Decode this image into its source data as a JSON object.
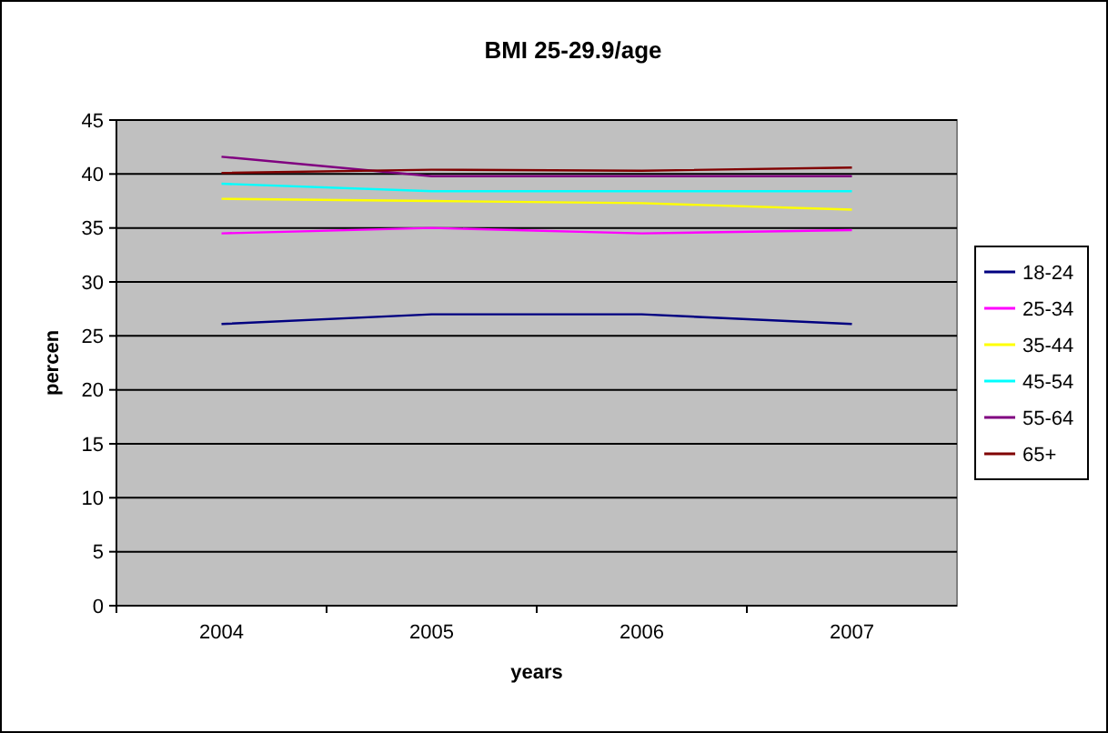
{
  "chart_data": {
    "type": "line",
    "title": "BMI 25-29.9/age",
    "xlabel": "years",
    "ylabel": "percen",
    "categories": [
      "2004",
      "2005",
      "2006",
      "2007"
    ],
    "series": [
      {
        "name": "18-24",
        "color": "#000080",
        "values": [
          26.1,
          27.0,
          27.0,
          26.1
        ]
      },
      {
        "name": "25-34",
        "color": "#ff00ff",
        "values": [
          34.5,
          35.0,
          34.5,
          34.8
        ]
      },
      {
        "name": "35-44",
        "color": "#ffff00",
        "values": [
          37.7,
          37.5,
          37.3,
          36.7
        ]
      },
      {
        "name": "45-54",
        "color": "#00ffff",
        "values": [
          39.1,
          38.4,
          38.4,
          38.4
        ]
      },
      {
        "name": "55-64",
        "color": "#800080",
        "values": [
          41.6,
          39.8,
          39.8,
          39.8
        ]
      },
      {
        "name": "65+",
        "color": "#800000",
        "values": [
          40.1,
          40.4,
          40.3,
          40.6
        ]
      }
    ],
    "ylim": [
      0,
      45
    ],
    "yticks": [
      0,
      5,
      10,
      15,
      20,
      25,
      30,
      35,
      40,
      45
    ],
    "grid": "y",
    "legend": "right",
    "marker": "none",
    "line_style": "solid"
  }
}
